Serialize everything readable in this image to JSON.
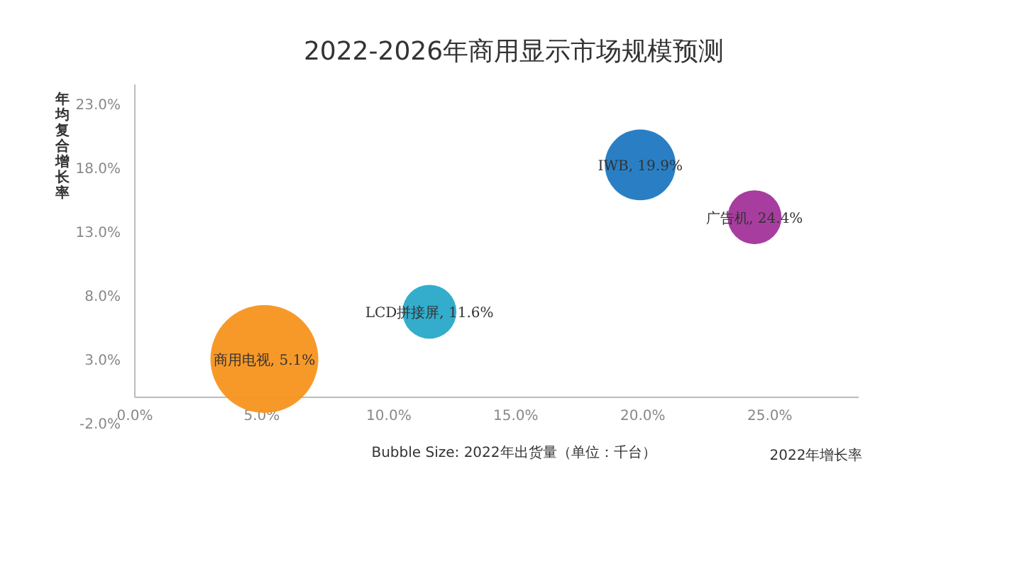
{
  "chart_data": {
    "type": "bubble",
    "title": "2022-2026年商用显示市场规模预测",
    "xlabel": "2022年增长率",
    "ylabel": "年均复合增长率",
    "annotations": [
      "Bubble Size: 2022年出货量（单位：千台）"
    ],
    "series": [
      {
        "name": "商用电视, 5.1%",
        "color": "#f7941d",
        "x": [
          5.1
        ],
        "values": [
          3.0
        ],
        "sizes": [
          1
        ]
      },
      {
        "name": "LCD拼接屏, 11.6%",
        "color": "#29a9c9",
        "x": [
          11.6
        ],
        "values": [
          6.7
        ],
        "sizes": [
          0.25
        ]
      },
      {
        "name": "IWB, 19.9%",
        "color": "#1f78c1",
        "x": [
          19.9
        ],
        "values": [
          18.2
        ],
        "sizes": [
          0.43
        ]
      },
      {
        "name": "广告机, 24.4%",
        "color": "#a2339a",
        "x": [
          24.4
        ],
        "values": [
          14.1
        ],
        "sizes": [
          0.25
        ]
      }
    ],
    "xlim": [
      0,
      28.5
    ],
    "xticks": [
      {
        "value": 0,
        "label": "0.0%"
      },
      {
        "value": 5,
        "label": "5.0%"
      },
      {
        "value": 10,
        "label": "10.0%"
      },
      {
        "value": 15,
        "label": "15.0%"
      },
      {
        "value": 20,
        "label": "20.0%"
      },
      {
        "value": 25,
        "label": "25.0%"
      }
    ],
    "ylim": [
      -2,
      24.5
    ],
    "yticks": [
      {
        "value": -2,
        "label": "-2.0%"
      },
      {
        "value": 3,
        "label": "3.0%"
      },
      {
        "value": 8,
        "label": "8.0%"
      },
      {
        "value": 13,
        "label": "13.0%"
      },
      {
        "value": 18,
        "label": "18.0%"
      },
      {
        "value": 23,
        "label": "23.0%"
      }
    ],
    "grid": false
  }
}
